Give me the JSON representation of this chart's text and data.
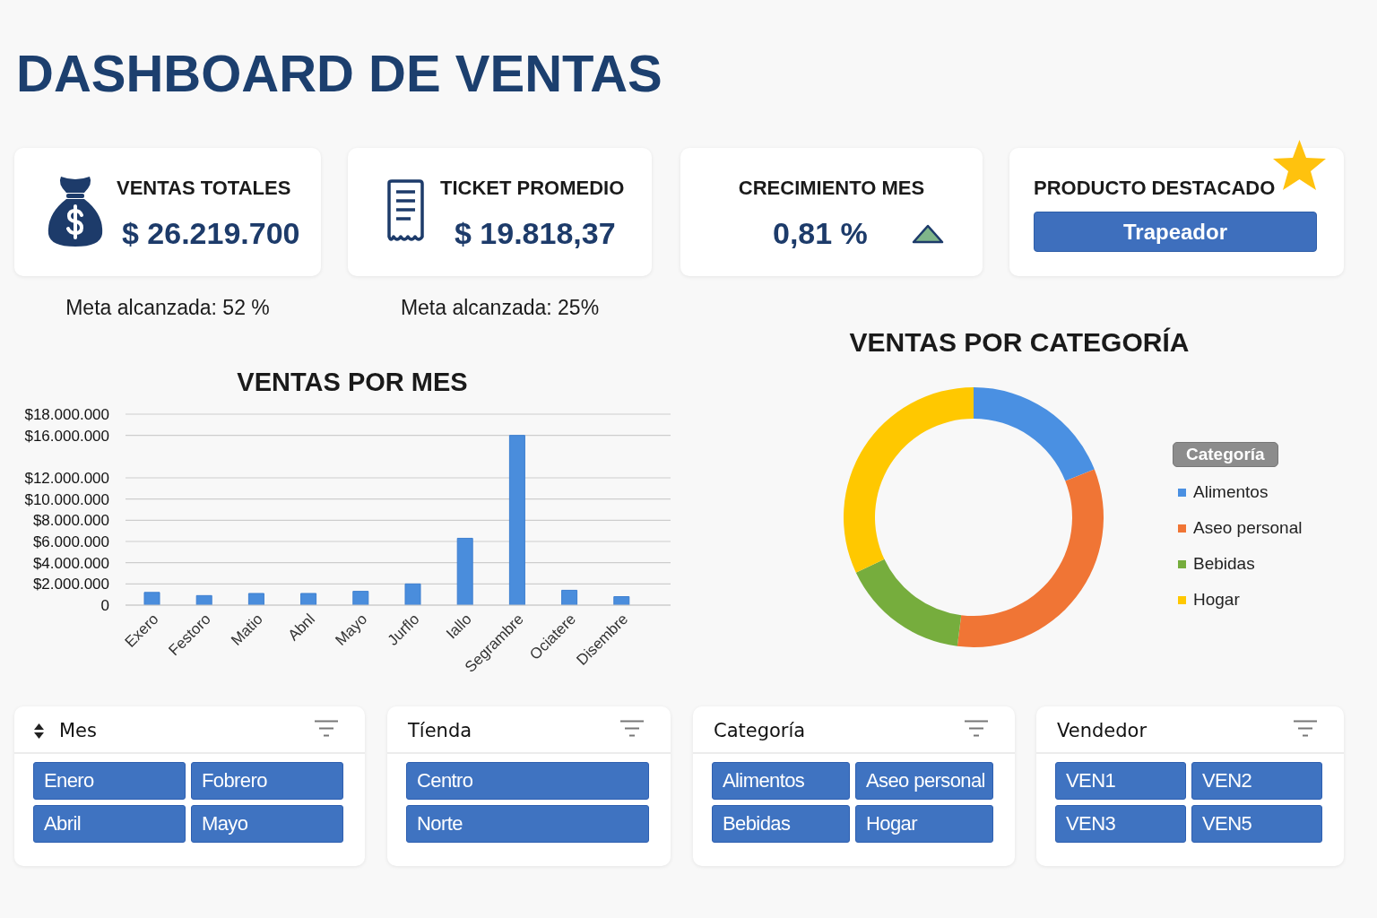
{
  "chart_data": [
    {
      "type": "other",
      "title": "DASHBOARD DE VENTAS"
    },
    {
      "type": "other",
      "title": "VENTAS TOTALES",
      "annotations": [
        "$ 26.219.700",
        "Meta alcanzada: 52 %"
      ]
    },
    {
      "type": "other",
      "title": "TICKET PROMEDIO",
      "annotations": [
        "$ 19.818,37",
        "Meta alcanzada: 25%"
      ]
    },
    {
      "type": "other",
      "title": "CRECIMIENTO MES",
      "annotations": [
        "0,81 %"
      ]
    },
    {
      "type": "other",
      "title": "PRODUCTO DESTACADO",
      "annotations": [
        "Trapeador"
      ]
    },
    {
      "type": "bar",
      "title": "VENTAS POR MES",
      "categories": [
        "Exero",
        "Festoro",
        "Matio",
        "Abnl",
        "Mayo",
        "Jurflo",
        "Iallo",
        "Segrambre",
        "Ociatere",
        "Disembre"
      ],
      "values": [
        1200000,
        900000,
        1100000,
        1100000,
        1300000,
        2000000,
        6300000,
        16000000,
        1400000,
        800000
      ],
      "color": "#4a8ddc",
      "ylim": [
        0,
        18000000
      ],
      "yticks": [
        0,
        {
          "value": 2000000,
          "label": "$2.000.000"
        },
        {
          "value": 4000000,
          "label": "$4.000.000"
        },
        {
          "value": 6000000,
          "label": "$6.000.000"
        },
        {
          "value": 8000000,
          "label": "$8.000.000"
        },
        {
          "value": 10000000,
          "label": "$10.000.000"
        },
        {
          "value": 12000000,
          "label": "$12.000.000"
        },
        {
          "value": 16000000,
          "label": "$16.000.000"
        },
        {
          "value": 18000000,
          "label": "$18.000.000"
        }
      ],
      "grid": "y"
    },
    {
      "type": "donut",
      "title": "VENTAS POR CATEGORÍA",
      "categories": [
        "Alimentos",
        "Aseo personal",
        "Bebidas",
        "Hogar"
      ],
      "values": [
        19,
        33,
        16,
        32
      ],
      "colors": [
        "#4a90e2",
        "#f07535",
        "#76ad3d",
        "#ffc800"
      ],
      "legend": "right",
      "legend_title": "Categoría"
    },
    {
      "type": "other",
      "title": "Mes",
      "annotations": [
        "Enero",
        "Fobrero",
        "Abril",
        "Mayo"
      ]
    },
    {
      "type": "other",
      "title": "Tíenda",
      "annotations": [
        "Centro",
        "Norte"
      ]
    },
    {
      "type": "other",
      "title": "Categoría",
      "annotations": [
        "Alimentos",
        "Aseo personal",
        "Bebidas",
        "Hogar"
      ]
    },
    {
      "type": "other",
      "title": "Vendedor",
      "annotations": [
        "VEN1",
        "VEN2",
        "VEN3",
        "VEN5"
      ]
    }
  ]
}
